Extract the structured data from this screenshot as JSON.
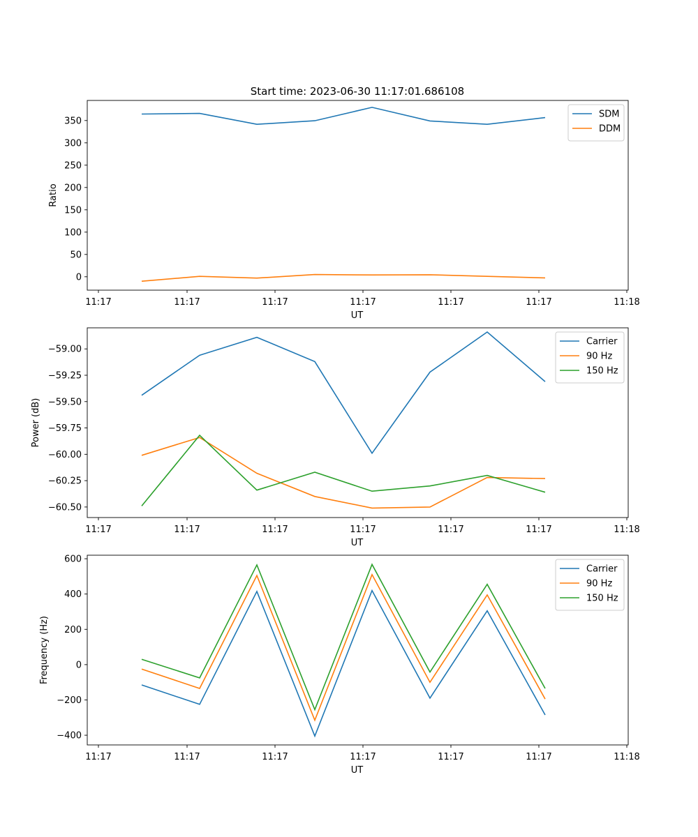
{
  "figure": {
    "title": "Start time: 2023-06-30 11:17:01.686108"
  },
  "colors": {
    "blue": "#1f77b4",
    "orange": "#ff7f0e",
    "green": "#2ca02c"
  },
  "chart_data": [
    {
      "type": "line",
      "title": "Start time: 2023-06-30 11:17:01.686108",
      "xlabel": "UT",
      "ylabel": "Ratio",
      "x_tick_labels": [
        "11:17",
        "11:17",
        "11:17",
        "11:17",
        "11:17",
        "11:17",
        "11:18"
      ],
      "ylim": [
        -30,
        395
      ],
      "y_ticks": [
        0,
        50,
        100,
        150,
        200,
        250,
        300,
        350
      ],
      "y_tick_labels": [
        "0",
        "50",
        "100",
        "150",
        "200",
        "250",
        "300",
        "350"
      ],
      "legend": "top-right",
      "grid": false,
      "series": [
        {
          "name": "SDM",
          "color": "#1f77b4",
          "values": [
            364.5,
            366.0,
            341.5,
            349.5,
            379.5,
            349.0,
            341.5,
            356.5
          ]
        },
        {
          "name": "DDM",
          "color": "#ff7f0e",
          "values": [
            -10.0,
            1.0,
            -3.0,
            5.0,
            4.0,
            4.5,
            1.0,
            -2.5
          ]
        }
      ]
    },
    {
      "type": "line",
      "title": "",
      "xlabel": "UT",
      "ylabel": "Power (dB)",
      "x_tick_labels": [
        "11:17",
        "11:17",
        "11:17",
        "11:17",
        "11:17",
        "11:17",
        "11:18"
      ],
      "ylim": [
        -60.6,
        -58.8
      ],
      "y_ticks": [
        -60.5,
        -60.25,
        -60.0,
        -59.75,
        -59.5,
        -59.25,
        -59.0
      ],
      "y_tick_labels": [
        "−60.50",
        "−60.25",
        "−60.00",
        "−59.75",
        "−59.50",
        "−59.25",
        "−59.00"
      ],
      "legend": "top-right",
      "grid": false,
      "series": [
        {
          "name": "Carrier",
          "color": "#1f77b4",
          "values": [
            -59.44,
            -59.06,
            -58.89,
            -59.12,
            -59.99,
            -59.22,
            -58.84,
            -59.31
          ]
        },
        {
          "name": "90 Hz",
          "color": "#ff7f0e",
          "values": [
            -60.01,
            -59.84,
            -60.18,
            -60.4,
            -60.51,
            -60.5,
            -60.22,
            -60.23
          ]
        },
        {
          "name": "150 Hz",
          "color": "#2ca02c",
          "values": [
            -60.49,
            -59.82,
            -60.34,
            -60.17,
            -60.35,
            -60.3,
            -60.2,
            -60.36
          ]
        }
      ]
    },
    {
      "type": "line",
      "title": "",
      "xlabel": "UT",
      "ylabel": "Frequency (Hz)",
      "x_tick_labels": [
        "11:17",
        "11:17",
        "11:17",
        "11:17",
        "11:17",
        "11:17",
        "11:18"
      ],
      "ylim": [
        -455,
        620
      ],
      "y_ticks": [
        -400,
        -200,
        0,
        200,
        400,
        600
      ],
      "y_tick_labels": [
        "−400",
        "−200",
        "0",
        "200",
        "400",
        "600"
      ],
      "legend": "top-right",
      "grid": false,
      "series": [
        {
          "name": "Carrier",
          "color": "#1f77b4",
          "values": [
            -115,
            -225,
            415,
            -405,
            420,
            -190,
            305,
            -285
          ]
        },
        {
          "name": "90 Hz",
          "color": "#ff7f0e",
          "values": [
            -25,
            -135,
            505,
            -315,
            510,
            -100,
            395,
            -195
          ]
        },
        {
          "name": "150 Hz",
          "color": "#2ca02c",
          "values": [
            30,
            -75,
            565,
            -255,
            568,
            -42,
            455,
            -135
          ]
        }
      ]
    }
  ]
}
